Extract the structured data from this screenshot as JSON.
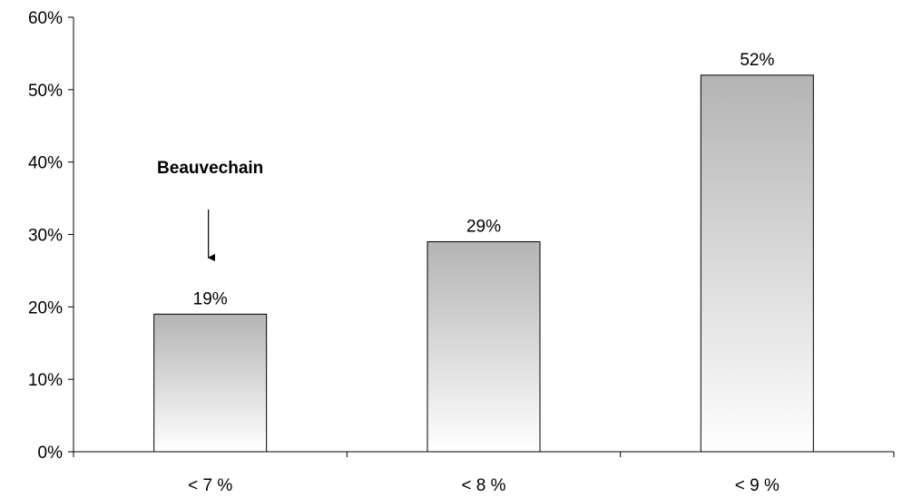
{
  "chart_data": {
    "type": "bar",
    "categories": [
      "< 7 %",
      "< 8 %",
      "< 9 %"
    ],
    "values": [
      19,
      29,
      52
    ],
    "value_labels": [
      "19%",
      "29%",
      "52%"
    ],
    "y_ticks": [
      0,
      10,
      20,
      30,
      40,
      50,
      60
    ],
    "y_tick_labels": [
      "0%",
      "10%",
      "20%",
      "30%",
      "40%",
      "50%",
      "60%"
    ],
    "ylim": [
      0,
      60
    ],
    "grid": false,
    "bar_fill": "gradient grey to white",
    "colors": {
      "bar_top": "#b4b4b4",
      "bar_bottom": "#ffffff",
      "axis": "#000000"
    },
    "annotation": {
      "text": "Beauvechain",
      "category": "< 7 %",
      "arrow": "down"
    }
  }
}
